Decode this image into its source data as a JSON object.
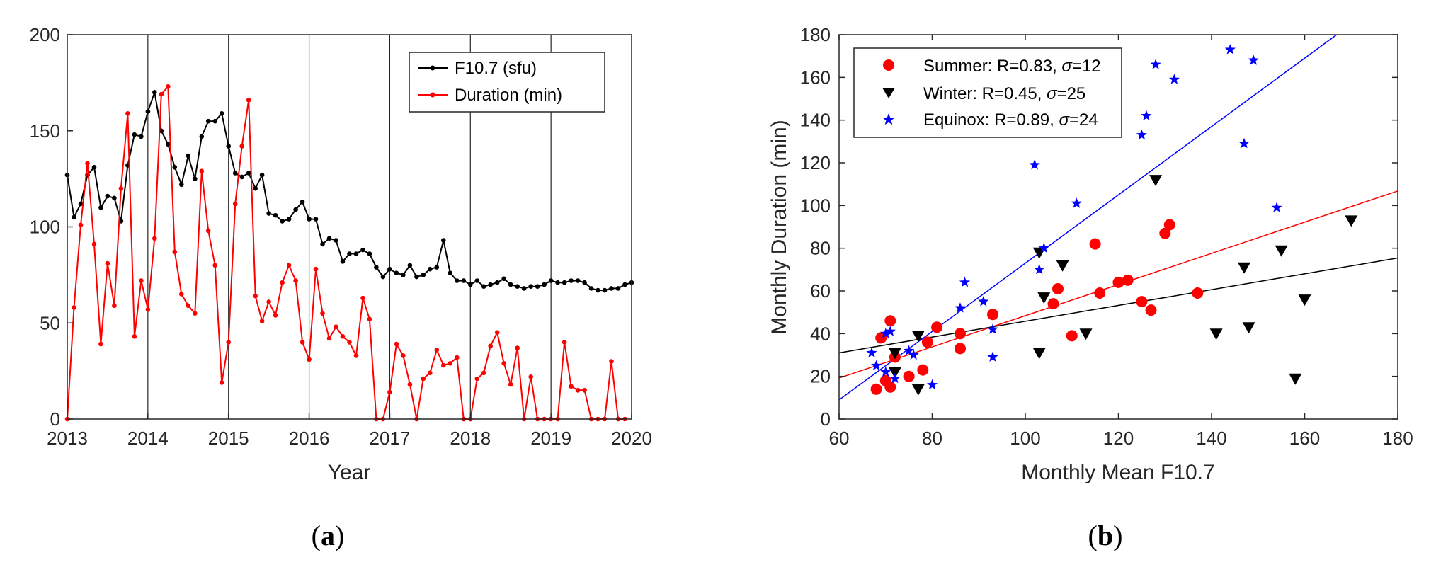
{
  "colors": {
    "black": "#000000",
    "red": "#ff0000",
    "blue": "#0000ff",
    "axis": "#262626"
  },
  "chart_data": [
    {
      "type": "line",
      "caption_letter": "a",
      "xlabel": "Year",
      "ylabel": "",
      "xlim": [
        2013,
        2020
      ],
      "ylim": [
        0,
        200
      ],
      "xticks": [
        "2013",
        "2014",
        "2015",
        "2016",
        "2017",
        "2018",
        "2019",
        "2020"
      ],
      "yticks": [
        "0",
        "50",
        "100",
        "150",
        "200"
      ],
      "vlines": [
        2014,
        2015,
        2016,
        2017,
        2018,
        2019
      ],
      "legend_position": "top-right",
      "series": [
        {
          "name": "F10.7 (sfu)",
          "color": "#000000",
          "x_start": 2013.0,
          "x_step": 0.08333,
          "values": [
            127,
            105,
            112,
            127,
            131,
            110,
            116,
            115,
            103,
            132,
            148,
            147,
            160,
            170,
            150,
            143,
            131,
            122,
            137,
            125,
            147,
            155,
            155,
            159,
            142,
            128,
            126,
            128,
            120,
            127,
            107,
            106,
            103,
            104,
            109,
            113,
            104,
            104,
            91,
            94,
            93,
            82,
            86,
            86,
            88,
            86,
            79,
            74,
            78,
            76,
            75,
            80,
            74,
            75,
            78,
            79,
            93,
            76,
            72,
            72,
            70,
            72,
            69,
            70,
            71,
            73,
            70,
            69,
            68,
            69,
            69,
            70,
            72,
            71,
            71,
            72,
            72,
            71,
            68,
            67,
            67,
            68,
            68,
            70,
            71
          ]
        },
        {
          "name": "Duration (min)",
          "color": "#ff0000",
          "x_start": 2013.0,
          "x_step": 0.08333,
          "values": [
            0,
            58,
            101,
            133,
            91,
            39,
            81,
            59,
            120,
            159,
            43,
            72,
            57,
            94,
            169,
            173,
            87,
            65,
            59,
            55,
            129,
            98,
            80,
            19,
            40,
            112,
            142,
            166,
            64,
            51,
            61,
            54,
            71,
            80,
            72,
            40,
            31,
            78,
            55,
            42,
            48,
            43,
            40,
            33,
            63,
            52,
            0,
            0,
            14,
            39,
            33,
            18,
            0,
            21,
            24,
            36,
            28,
            29,
            32,
            0,
            0,
            21,
            24,
            38,
            45,
            29,
            18,
            37,
            0,
            22,
            0,
            0,
            0,
            0,
            40,
            17,
            15,
            15,
            0,
            0,
            0,
            30,
            0,
            0
          ]
        }
      ]
    },
    {
      "type": "scatter",
      "caption_letter": "b",
      "xlabel": "Monthly Mean F10.7",
      "ylabel": "Monthly Duration (min)",
      "xlim": [
        60,
        180
      ],
      "ylim": [
        0,
        180
      ],
      "xticks": [
        "60",
        "80",
        "100",
        "120",
        "140",
        "160",
        "180"
      ],
      "yticks": [
        "0",
        "20",
        "40",
        "60",
        "80",
        "100",
        "120",
        "140",
        "160",
        "180"
      ],
      "legend_position": "top-left",
      "legend": [
        {
          "prefix": "Summer: R=0.83, ",
          "sigma": "σ",
          "suffix": "=12"
        },
        {
          "prefix": "Winter: R=0.45, ",
          "sigma": "σ",
          "suffix": "=25"
        },
        {
          "prefix": "Equinox: R=0.89, ",
          "sigma": "σ",
          "suffix": "=24"
        }
      ],
      "series": [
        {
          "name": "Summer",
          "marker": "circle",
          "color": "#ff0000",
          "fit": {
            "slope": 0.73,
            "intercept": -24.6
          },
          "points": [
            [
              68,
              14
            ],
            [
              69,
              38
            ],
            [
              70,
              18
            ],
            [
              71,
              46
            ],
            [
              71,
              15
            ],
            [
              72,
              29
            ],
            [
              75,
              20
            ],
            [
              78,
              23
            ],
            [
              79,
              36
            ],
            [
              81,
              43
            ],
            [
              86,
              40
            ],
            [
              86,
              33
            ],
            [
              93,
              49
            ],
            [
              106,
              54
            ],
            [
              107,
              61
            ],
            [
              110,
              39
            ],
            [
              115,
              82
            ],
            [
              116,
              59
            ],
            [
              120,
              64
            ],
            [
              122,
              65
            ],
            [
              125,
              55
            ],
            [
              127,
              51
            ],
            [
              130,
              87
            ],
            [
              131,
              91
            ],
            [
              137,
              59
            ]
          ]
        },
        {
          "name": "Winter",
          "marker": "triangle-down",
          "color": "#000000",
          "fit": {
            "slope": 0.37,
            "intercept": 8.8
          },
          "points": [
            [
              72,
              31
            ],
            [
              72,
              22
            ],
            [
              77,
              39
            ],
            [
              77,
              14
            ],
            [
              103,
              78
            ],
            [
              103,
              31
            ],
            [
              104,
              57
            ],
            [
              108,
              72
            ],
            [
              113,
              40
            ],
            [
              128,
              112
            ],
            [
              141,
              40
            ],
            [
              147,
              71
            ],
            [
              148,
              43
            ],
            [
              155,
              79
            ],
            [
              158,
              19
            ],
            [
              160,
              56
            ],
            [
              170,
              93
            ]
          ]
        },
        {
          "name": "Equinox",
          "marker": "star",
          "color": "#0000ff",
          "fit": {
            "slope": 1.6,
            "intercept": -87
          },
          "points": [
            [
              67,
              31
            ],
            [
              68,
              25
            ],
            [
              70,
              22
            ],
            [
              70,
              40
            ],
            [
              71,
              41
            ],
            [
              72,
              19
            ],
            [
              75,
              32
            ],
            [
              76,
              30
            ],
            [
              80,
              16
            ],
            [
              86,
              52
            ],
            [
              87,
              64
            ],
            [
              91,
              55
            ],
            [
              93,
              42
            ],
            [
              93,
              29
            ],
            [
              102,
              119
            ],
            [
              103,
              70
            ],
            [
              104,
              80
            ],
            [
              111,
              101
            ],
            [
              125,
              133
            ],
            [
              126,
              142
            ],
            [
              128,
              166
            ],
            [
              132,
              159
            ],
            [
              144,
              173
            ],
            [
              147,
              129
            ],
            [
              149,
              168
            ],
            [
              154,
              99
            ]
          ]
        }
      ]
    }
  ]
}
